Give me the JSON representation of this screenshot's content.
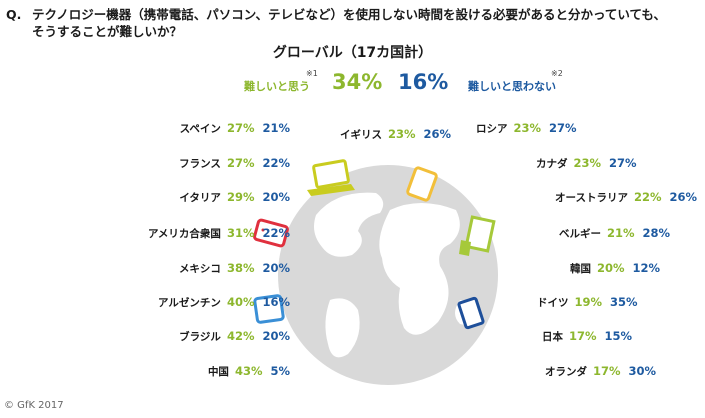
{
  "question": {
    "prefix": "Q.",
    "line1": "テクノロジー機器（携帯電話、パソコン、テレビなど）を使用しない時間を設ける必要があると分かっていても、",
    "line2": "そうすることが難しいか？"
  },
  "global": {
    "title": "グローバル（17カ国計）",
    "hard_label": "難しいと思う",
    "hard_note": "※1",
    "hard_value": "34%",
    "not_hard_value": "16%",
    "not_hard_label": "難しいと思わない",
    "not_hard_note": "※2"
  },
  "colors": {
    "hard": "#8db72e",
    "not_hard": "#1e5aa0",
    "globe": "#d9d9d9"
  },
  "chart_data": {
    "type": "table",
    "title": "グローバル（17カ国計）",
    "columns": [
      "難しいと思う",
      "難しいと思わない"
    ],
    "global": {
      "hard": 34,
      "not_hard": 16
    },
    "countries": [
      {
        "name": "スペイン",
        "hard": 27,
        "not_hard": 21
      },
      {
        "name": "フランス",
        "hard": 27,
        "not_hard": 22
      },
      {
        "name": "イタリア",
        "hard": 29,
        "not_hard": 20
      },
      {
        "name": "アメリカ合衆国",
        "hard": 31,
        "not_hard": 22
      },
      {
        "name": "メキシコ",
        "hard": 38,
        "not_hard": 20
      },
      {
        "name": "アルゼンチン",
        "hard": 40,
        "not_hard": 16
      },
      {
        "name": "ブラジル",
        "hard": 42,
        "not_hard": 20
      },
      {
        "name": "中国",
        "hard": 43,
        "not_hard": 5
      },
      {
        "name": "イギリス",
        "hard": 23,
        "not_hard": 26
      },
      {
        "name": "ロシア",
        "hard": 23,
        "not_hard": 27
      },
      {
        "name": "カナダ",
        "hard": 23,
        "not_hard": 27
      },
      {
        "name": "オーストラリア",
        "hard": 22,
        "not_hard": 26
      },
      {
        "name": "ベルギー",
        "hard": 21,
        "not_hard": 28
      },
      {
        "name": "韓国",
        "hard": 20,
        "not_hard": 12
      },
      {
        "name": "ドイツ",
        "hard": 19,
        "not_hard": 35
      },
      {
        "name": "日本",
        "hard": 17,
        "not_hard": 15
      },
      {
        "name": "オランダ",
        "hard": 17,
        "not_hard": 30
      }
    ]
  },
  "footer": {
    "copyright": "© GfK 2017"
  }
}
